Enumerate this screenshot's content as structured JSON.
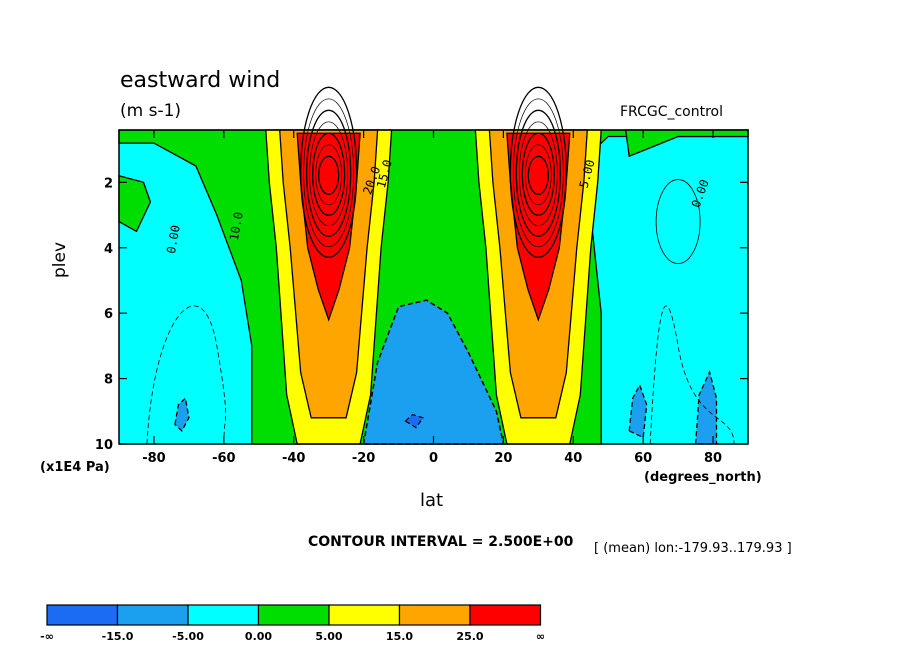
{
  "header": {
    "title": "eastward wind",
    "units": "(m s-1)",
    "dataset": "FRCGC_control"
  },
  "footer": {
    "contour_interval": "CONTOUR INTERVAL = 2.500E+00",
    "lon_note": "[ (mean) lon:-179.93..179.93 ]"
  },
  "chart_data": {
    "type": "contour",
    "title": "eastward wind",
    "xlabel": "lat",
    "xunits": "(degrees_north)",
    "ylabel": "plev",
    "yunits": "(x1E4 Pa)",
    "xlim": [
      -90,
      90
    ],
    "ylim": [
      10,
      0.4
    ],
    "xticks": [
      -80,
      -60,
      -40,
      -20,
      0,
      20,
      40,
      60,
      80
    ],
    "yticks": [
      2,
      4,
      6,
      8,
      10
    ],
    "contour_interval": 2.5,
    "jets": [
      {
        "lat": -30,
        "plev": 1.8,
        "max": 42
      },
      {
        "lat": 30,
        "plev": 1.8,
        "max": 42
      }
    ],
    "contour_labels": [
      "0.00",
      "10.0",
      "20.0",
      "15.0",
      "5.00",
      "0.00"
    ],
    "colorbar": {
      "bounds": [
        "-∞",
        "-15.0",
        "-5.00",
        "0.00",
        "5.00",
        "15.0",
        "25.0",
        "∞"
      ],
      "colors": [
        "#1b6cf2",
        "#1aa0ee",
        "#00ffff",
        "#00dd00",
        "#ffff00",
        "#ffa500",
        "#ff0000"
      ]
    },
    "fill_colors": {
      "neg_deep": "#1b6cf2",
      "neg": "#1aa0ee",
      "near_zero": "#00ffff",
      "low": "#00dd00",
      "mid": "#ffff00",
      "high": "#ffa500",
      "top": "#ff0000"
    }
  }
}
